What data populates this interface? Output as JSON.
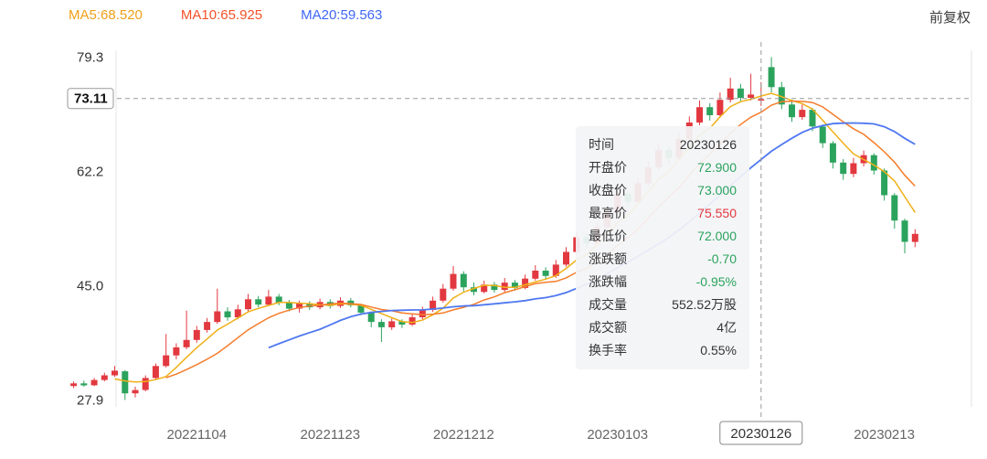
{
  "meta": {
    "adjust_label": "前复权"
  },
  "legend": {
    "ma5": {
      "label": "MA5:68.520",
      "color": "#f0a018"
    },
    "ma10": {
      "label": "MA10:65.925",
      "color": "#f5512a"
    },
    "ma20": {
      "label": "MA20:59.563",
      "color": "#3f66f5"
    }
  },
  "tooltip": {
    "rows": [
      {
        "key": "time",
        "label": "时间",
        "value": "20230126",
        "color": "#333333"
      },
      {
        "key": "open",
        "label": "开盘价",
        "value": "72.900",
        "color": "#2ba35d"
      },
      {
        "key": "close",
        "label": "收盘价",
        "value": "73.000",
        "color": "#2ba35d"
      },
      {
        "key": "high",
        "label": "最高价",
        "value": "75.550",
        "color": "#e2383f"
      },
      {
        "key": "low",
        "label": "最低价",
        "value": "72.000",
        "color": "#2ba35d"
      },
      {
        "key": "change",
        "label": "涨跌额",
        "value": "-0.70",
        "color": "#2ba35d"
      },
      {
        "key": "change-pct",
        "label": "涨跌幅",
        "value": "-0.95%",
        "color": "#2ba35d"
      },
      {
        "key": "volume",
        "label": "成交量",
        "value": "552.52万股",
        "color": "#333333"
      },
      {
        "key": "turnover",
        "label": "成交额",
        "value": "4亿",
        "color": "#333333"
      },
      {
        "key": "turnover-rate",
        "label": "换手率",
        "value": "0.55%",
        "color": "#333333"
      }
    ]
  },
  "chart_data": {
    "type": "candlestick",
    "ylim": [
      27.9,
      79.3
    ],
    "y_ticks": [
      79.3,
      62.2,
      45.0,
      27.9
    ],
    "x_ticks": [
      "20221104",
      "20221123",
      "20221212",
      "20230103",
      "20230126",
      "20230213"
    ],
    "x_axis_slots": 88,
    "crosshair": {
      "date": "20230126",
      "price_label": "73.11"
    },
    "colors": {
      "up": "#e2383f",
      "down": "#2ba35d",
      "ma5": "#f0b018",
      "ma10": "#f57c2a",
      "ma20": "#4f78f0",
      "crosshair": "#999999",
      "axis_text": "#666666",
      "tick_text": "#333333"
    },
    "candles": [
      [
        "20221019",
        30.0,
        30.7,
        29.7,
        30.4
      ],
      [
        "20221020",
        30.4,
        30.8,
        29.9,
        30.1
      ],
      [
        "20221021",
        30.1,
        31.2,
        30.0,
        30.9
      ],
      [
        "20221024",
        30.9,
        32.0,
        30.7,
        31.6
      ],
      [
        "20221025",
        31.6,
        33.0,
        31.4,
        32.3
      ],
      [
        "20221026",
        32.2,
        32.4,
        27.9,
        28.9
      ],
      [
        "20221027",
        28.9,
        29.9,
        28.3,
        29.4
      ],
      [
        "20221028",
        29.4,
        31.6,
        29.2,
        31.2
      ],
      [
        "20221031",
        31.2,
        33.4,
        30.9,
        33.0
      ],
      [
        "20221101",
        33.0,
        37.8,
        32.8,
        34.6
      ],
      [
        "20221102",
        34.6,
        36.4,
        34.0,
        35.8
      ],
      [
        "20221103",
        35.8,
        41.3,
        35.5,
        36.9
      ],
      [
        "20221104",
        36.9,
        39.0,
        36.5,
        38.4
      ],
      [
        "20221107",
        38.4,
        40.2,
        38.0,
        39.6
      ],
      [
        "20221108",
        39.6,
        44.6,
        39.3,
        41.2
      ],
      [
        "20221109",
        41.2,
        41.8,
        39.8,
        40.3
      ],
      [
        "20221110",
        40.3,
        42.2,
        40.0,
        41.5
      ],
      [
        "20221111",
        41.5,
        43.8,
        41.2,
        43.0
      ],
      [
        "20221114",
        43.0,
        43.5,
        41.8,
        42.2
      ],
      [
        "20221115",
        42.2,
        44.4,
        42.0,
        43.4
      ],
      [
        "20221116",
        43.4,
        43.8,
        42.1,
        42.5
      ],
      [
        "20221117",
        42.5,
        42.9,
        41.2,
        41.6
      ],
      [
        "20221118",
        41.6,
        42.8,
        41.0,
        42.4
      ],
      [
        "20221121",
        42.4,
        42.7,
        41.4,
        41.8
      ],
      [
        "20221122",
        41.8,
        43.1,
        41.5,
        42.6
      ],
      [
        "20221123",
        42.6,
        43.0,
        41.6,
        42.0
      ],
      [
        "20221124",
        42.0,
        43.3,
        41.7,
        42.8
      ],
      [
        "20221125",
        42.8,
        43.2,
        41.8,
        42.1
      ],
      [
        "20221128",
        42.1,
        42.3,
        40.6,
        41.0
      ],
      [
        "20221129",
        41.0,
        41.2,
        38.8,
        39.6
      ],
      [
        "20221130",
        39.6,
        40.0,
        36.6,
        38.8
      ],
      [
        "20221201",
        38.8,
        40.1,
        38.4,
        39.7
      ],
      [
        "20221202",
        39.7,
        40.0,
        38.7,
        39.2
      ],
      [
        "20221205",
        39.2,
        40.8,
        39.0,
        40.3
      ],
      [
        "20221206",
        40.3,
        41.9,
        40.0,
        41.4
      ],
      [
        "20221207",
        41.4,
        43.4,
        41.1,
        42.8
      ],
      [
        "20221208",
        42.8,
        45.3,
        42.5,
        44.6
      ],
      [
        "20221209",
        44.6,
        48.0,
        44.3,
        46.8
      ],
      [
        "20221212",
        46.8,
        47.2,
        44.2,
        44.8
      ],
      [
        "20221213",
        44.8,
        45.5,
        43.6,
        44.1
      ],
      [
        "20221214",
        44.1,
        45.8,
        43.9,
        45.2
      ],
      [
        "20221215",
        45.2,
        45.6,
        44.0,
        44.4
      ],
      [
        "20221216",
        44.4,
        46.2,
        44.1,
        45.5
      ],
      [
        "20221219",
        45.5,
        45.9,
        44.3,
        44.7
      ],
      [
        "20221220",
        44.7,
        46.7,
        44.5,
        46.1
      ],
      [
        "20221221",
        46.1,
        48.1,
        45.8,
        47.3
      ],
      [
        "20221222",
        47.3,
        47.8,
        46.0,
        46.5
      ],
      [
        "20221223",
        46.5,
        48.9,
        46.2,
        48.2
      ],
      [
        "20221226",
        48.2,
        50.8,
        47.9,
        50.1
      ],
      [
        "20221227",
        50.1,
        53.0,
        49.8,
        52.3
      ],
      [
        "20221228",
        52.3,
        52.9,
        50.7,
        51.4
      ],
      [
        "20221229",
        51.4,
        54.6,
        51.1,
        53.8
      ],
      [
        "20221230",
        53.8,
        57.0,
        53.5,
        56.2
      ],
      [
        "20230103",
        56.2,
        59.6,
        55.9,
        58.8
      ],
      [
        "20230104",
        58.8,
        59.2,
        56.8,
        57.6
      ],
      [
        "20230105",
        57.6,
        61.2,
        57.3,
        60.4
      ],
      [
        "20230106",
        60.4,
        63.7,
        60.0,
        62.8
      ],
      [
        "20230109",
        62.8,
        66.3,
        62.4,
        65.4
      ],
      [
        "20230110",
        65.4,
        66.0,
        63.4,
        64.2
      ],
      [
        "20230111",
        64.2,
        67.9,
        63.9,
        67.0
      ],
      [
        "20230112",
        67.0,
        70.4,
        66.6,
        69.5
      ],
      [
        "20230113",
        69.5,
        72.8,
        69.1,
        71.8
      ],
      [
        "20230116",
        71.8,
        72.4,
        69.8,
        70.6
      ],
      [
        "20230117",
        70.6,
        74.0,
        70.2,
        72.9
      ],
      [
        "20230118",
        72.9,
        76.2,
        72.5,
        74.6
      ],
      [
        "20230119",
        74.6,
        75.3,
        72.6,
        73.2
      ],
      [
        "20230120",
        73.2,
        76.8,
        72.8,
        73.7
      ],
      [
        "20230126",
        72.9,
        75.55,
        72.0,
        73.0
      ],
      [
        "20230127",
        77.8,
        79.3,
        74.0,
        74.8
      ],
      [
        "20230130",
        74.8,
        75.6,
        71.5,
        72.2
      ],
      [
        "20230131",
        72.2,
        72.8,
        69.6,
        70.3
      ],
      [
        "20230201",
        70.3,
        72.2,
        69.9,
        71.4
      ],
      [
        "20230202",
        71.4,
        71.7,
        68.2,
        68.9
      ],
      [
        "20230203",
        68.9,
        69.2,
        65.7,
        66.4
      ],
      [
        "20230206",
        66.4,
        66.7,
        62.6,
        63.5
      ],
      [
        "20230207",
        63.5,
        64.0,
        60.9,
        61.8
      ],
      [
        "20230208",
        61.8,
        64.2,
        61.3,
        63.4
      ],
      [
        "20230209",
        63.4,
        65.3,
        62.9,
        64.6
      ],
      [
        "20230210",
        64.6,
        64.9,
        61.7,
        62.3
      ],
      [
        "20230213",
        62.3,
        62.6,
        57.8,
        58.6
      ],
      [
        "20230214",
        58.6,
        58.9,
        53.6,
        54.8
      ],
      [
        "20230215",
        54.8,
        55.1,
        49.9,
        51.6
      ],
      [
        "20230216",
        51.6,
        53.5,
        50.8,
        52.8
      ]
    ]
  }
}
